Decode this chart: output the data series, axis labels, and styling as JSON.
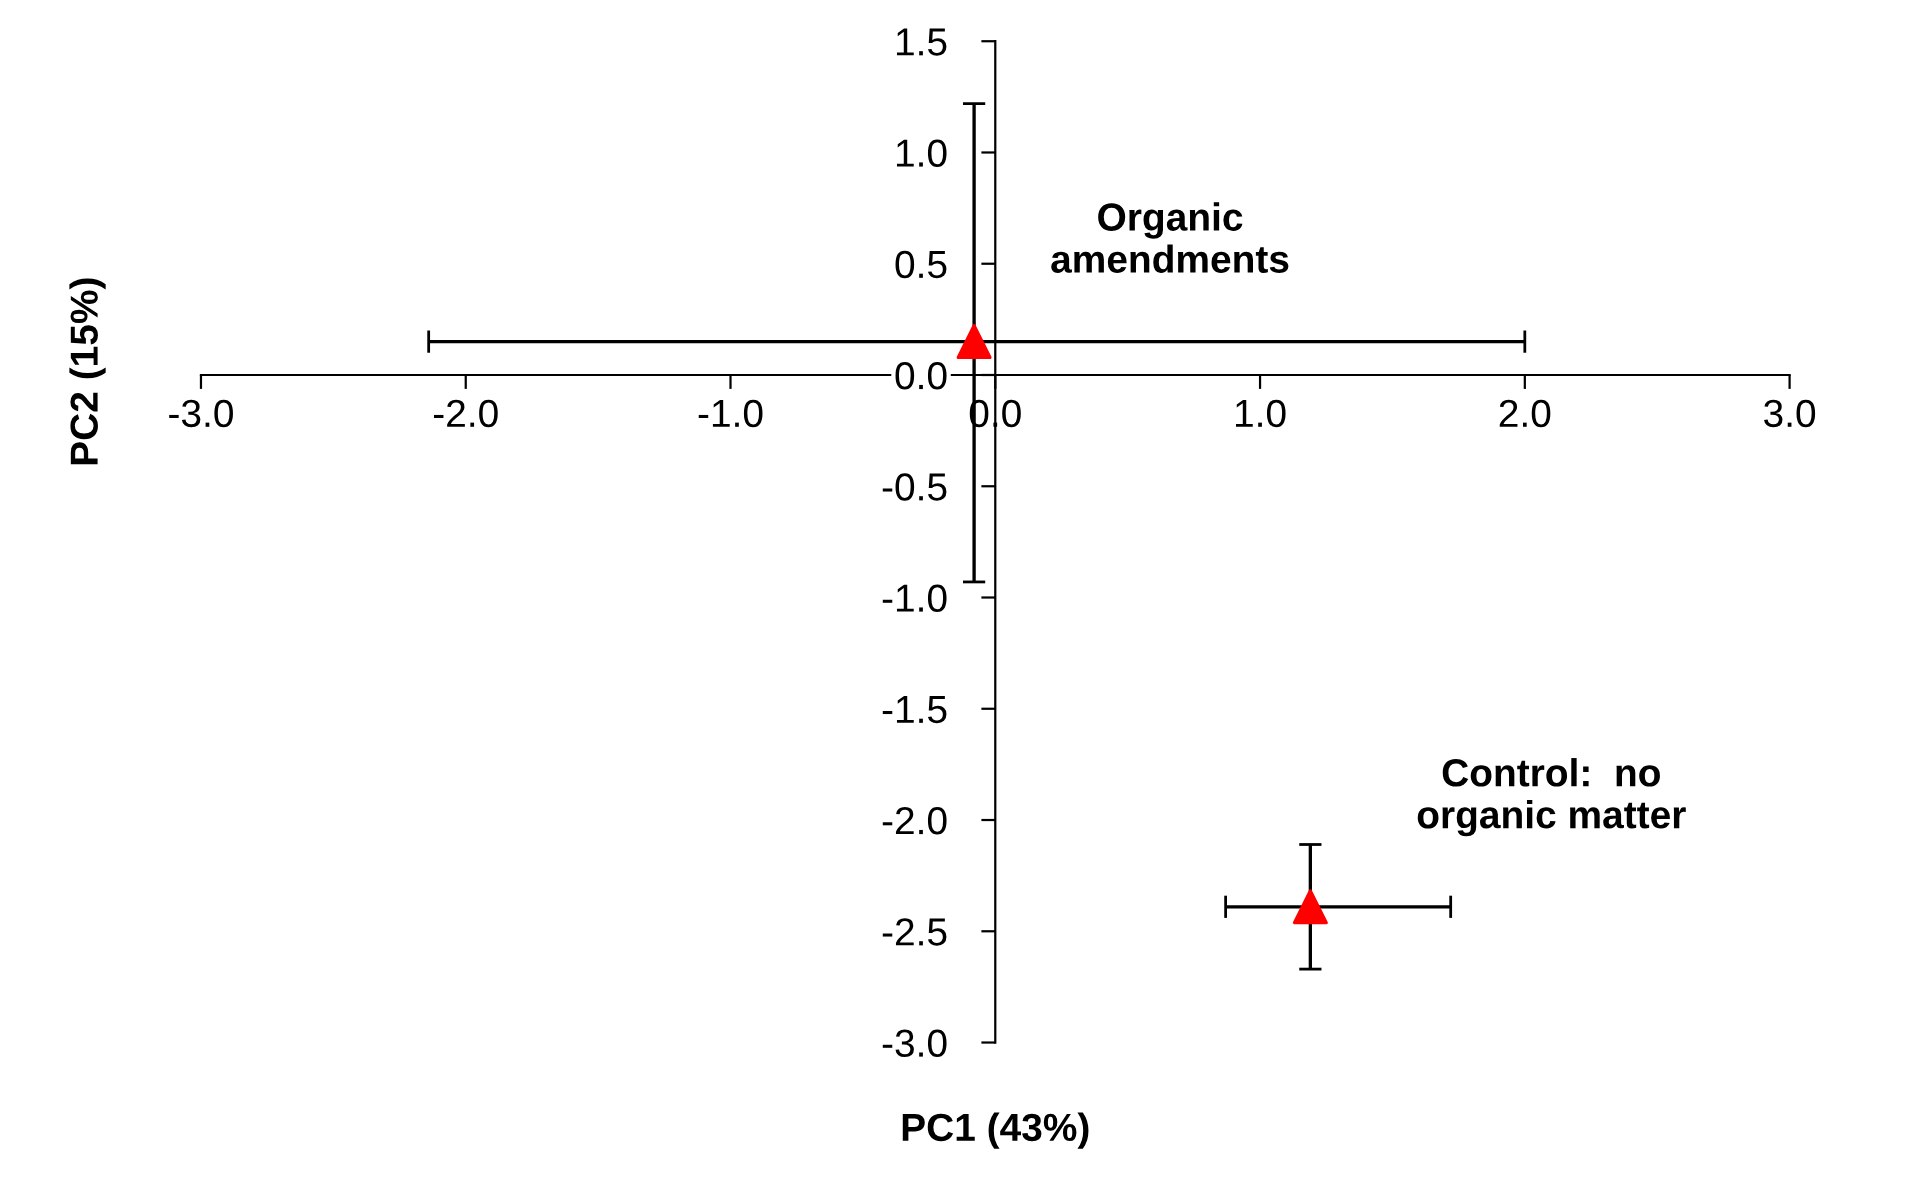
{
  "chart_data": {
    "type": "scatter",
    "xlabel": "PC1 (43%)",
    "ylabel": "PC2 (15%)",
    "xlim": [
      -3.0,
      3.0
    ],
    "xticks": [
      {
        "value": -3,
        "label": "-3.0"
      },
      {
        "value": -2,
        "label": "-2.0"
      },
      {
        "value": -1,
        "label": "-1.0"
      },
      {
        "value": 0,
        "label": "0.0"
      },
      {
        "value": 1,
        "label": "1.0"
      },
      {
        "value": 2,
        "label": "2.0"
      },
      {
        "value": 3,
        "label": "3.0"
      }
    ],
    "ylim": [
      -3.0,
      1.5
    ],
    "yticks": [
      {
        "value": -3,
        "label": "-3.0"
      },
      {
        "value": -2.5,
        "label": "-2.5"
      },
      {
        "value": -2,
        "label": "-2.0"
      },
      {
        "value": -1.5,
        "label": "-1.5"
      },
      {
        "value": -1,
        "label": "-1.0"
      },
      {
        "value": -0.5,
        "label": "-0.5"
      },
      {
        "value": 0,
        "label": "0.0"
      },
      {
        "value": 0.5,
        "label": "0.5"
      },
      {
        "value": 1,
        "label": "1.0"
      },
      {
        "value": 1.5,
        "label": "1.5"
      }
    ],
    "grid": false,
    "legend": false,
    "marker": "triangle",
    "series": [
      {
        "color": "#ff0000",
        "x": [
          -0.08
        ],
        "values": [
          0.15
        ],
        "errors": [
          [
            -0.93,
            1.22
          ]
        ],
        "xerrors": [
          [
            -2.14,
            2.0
          ]
        ]
      },
      {
        "color": "#ff0000",
        "x": [
          1.19
        ],
        "values": [
          -2.39
        ],
        "errors": [
          [
            -2.67,
            -2.11
          ]
        ],
        "xerrors": [
          [
            0.87,
            1.72
          ]
        ]
      }
    ],
    "annotations": [
      "Organic\namendments",
      "Control:  no\norganic matter"
    ]
  }
}
